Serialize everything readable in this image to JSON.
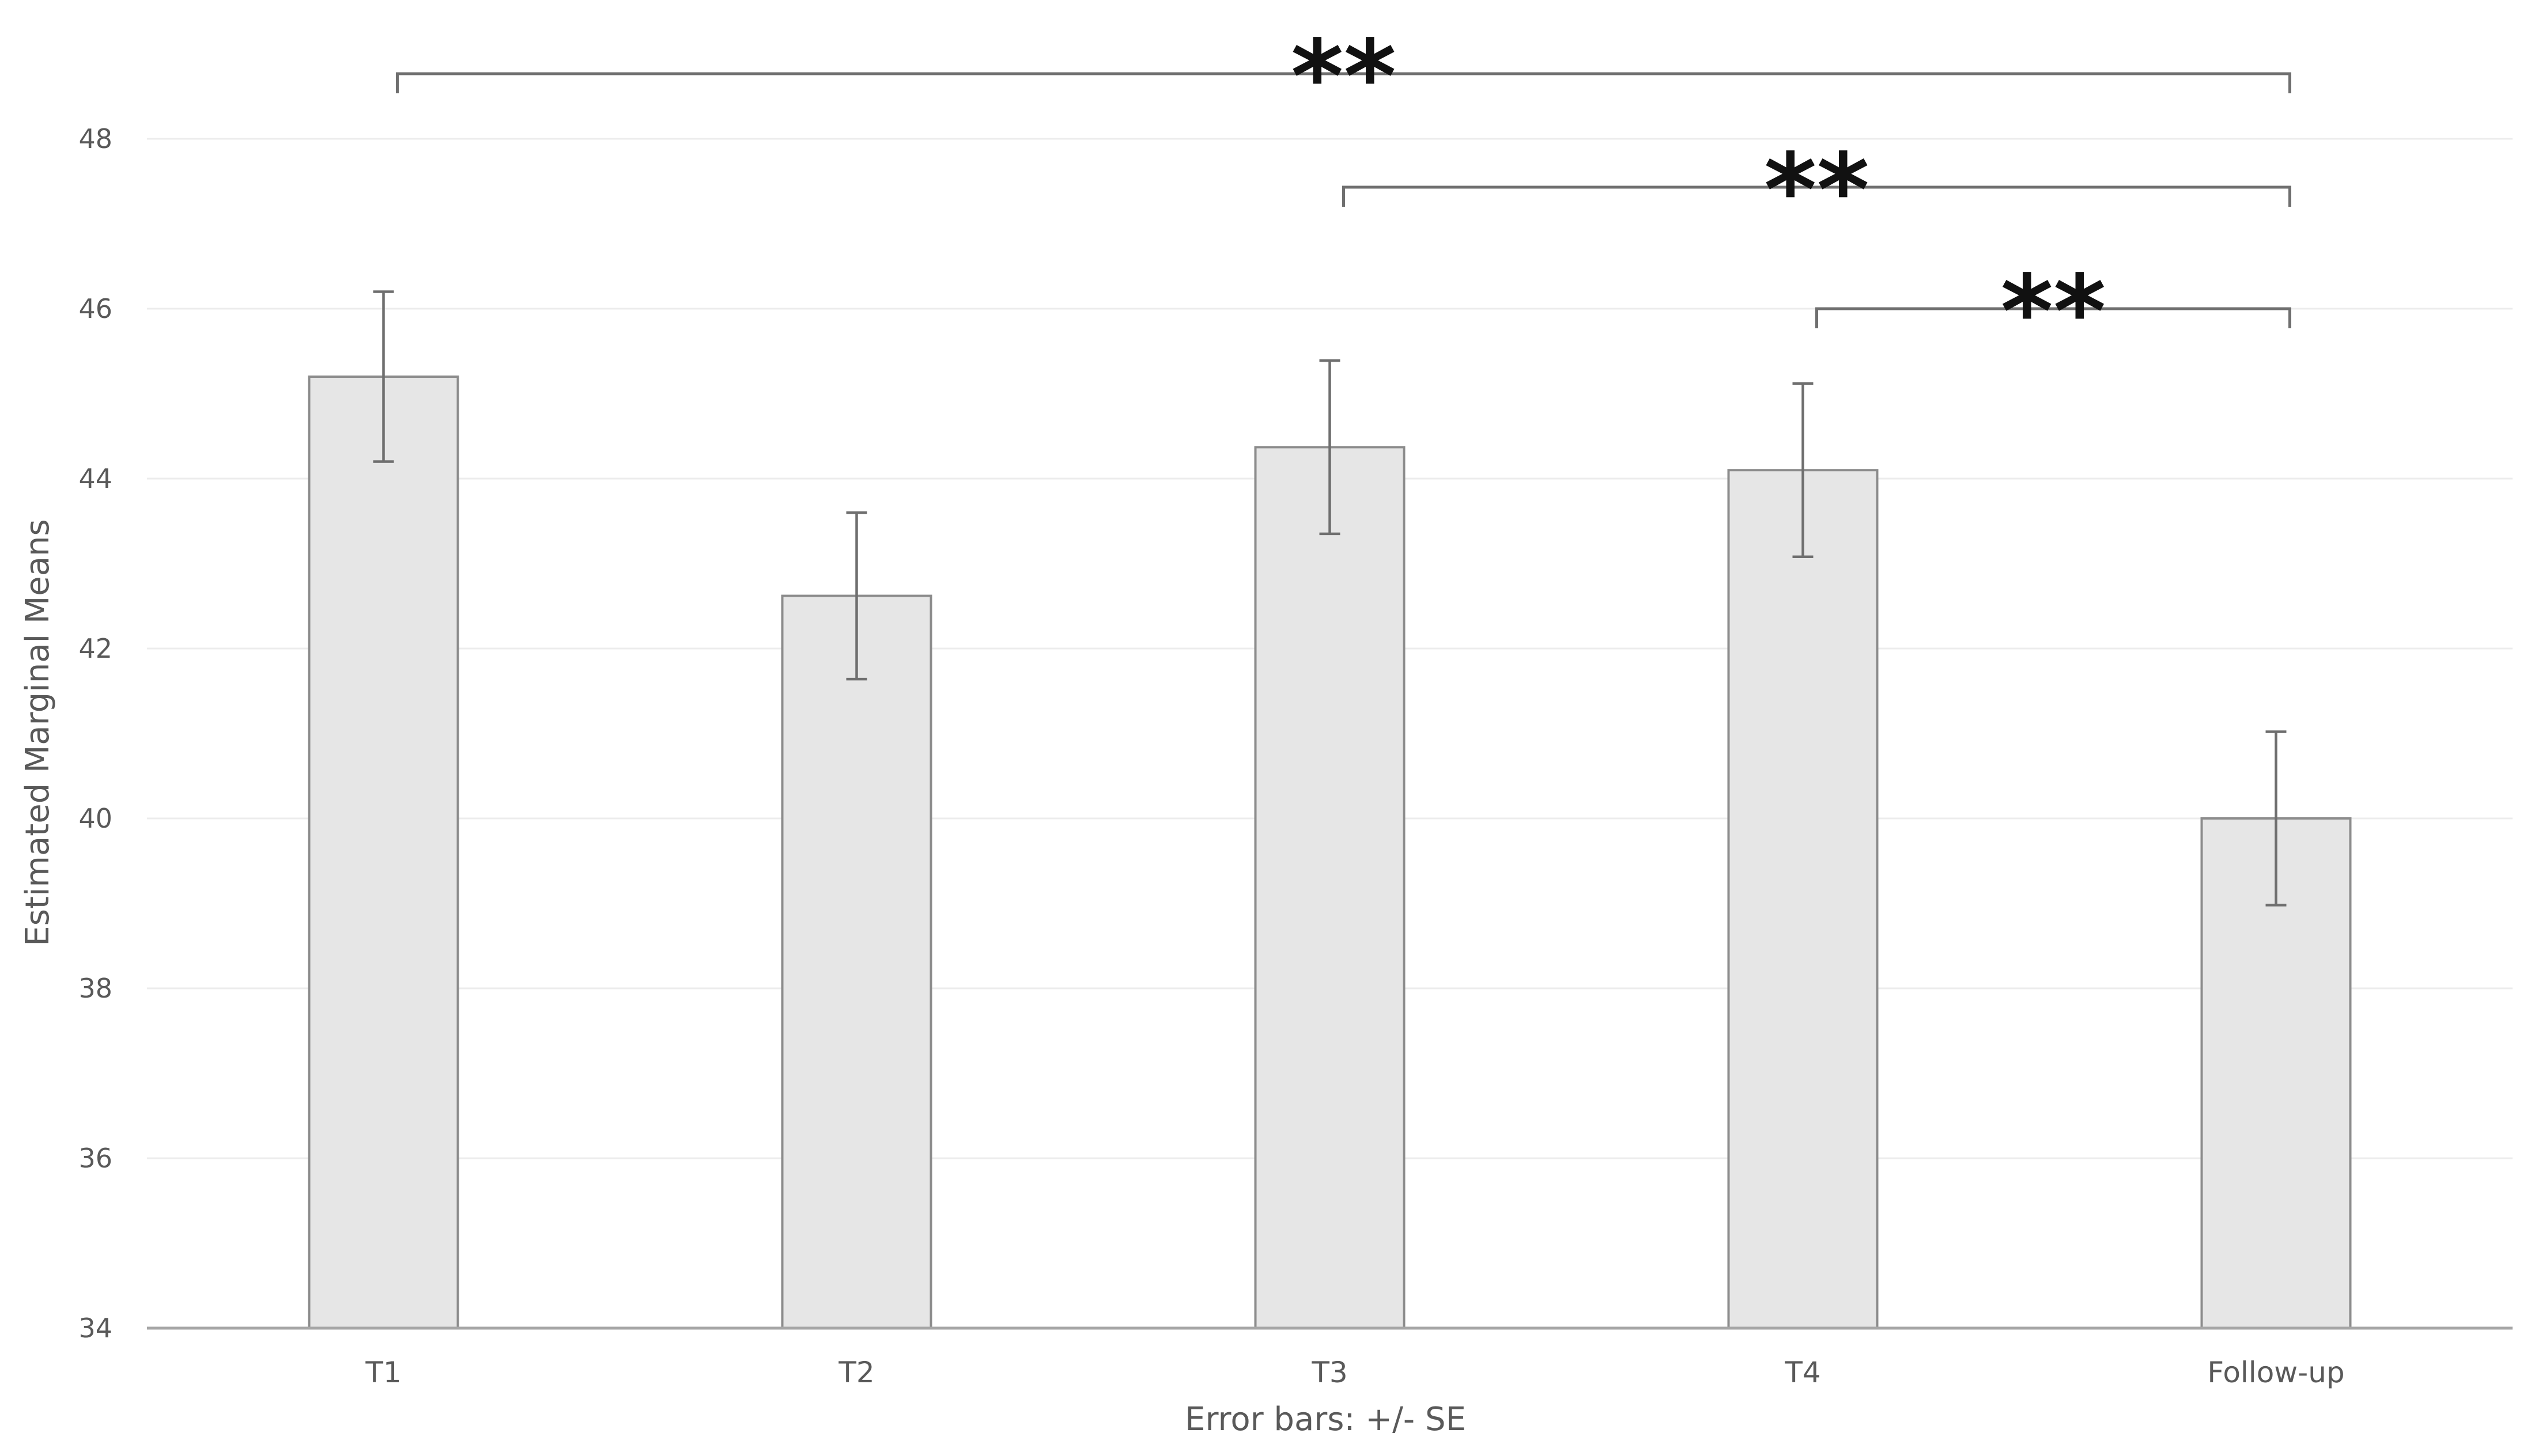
{
  "chart_data": {
    "type": "bar",
    "title": "",
    "categories": [
      "T1",
      "T2",
      "T3",
      "T4",
      "Follow-up"
    ],
    "values": [
      45.2,
      42.62,
      44.37,
      44.1,
      40.0
    ],
    "errors": [
      1.0,
      0.98,
      1.02,
      1.02,
      1.02
    ],
    "ylabel": "Estimated Marginal Means",
    "xlabel": "Error bars: +/- SE",
    "ylim": [
      34,
      48
    ],
    "yticks": [
      34,
      36,
      38,
      40,
      42,
      44,
      46,
      48
    ],
    "grid": true,
    "bar_color": "#e6e6e6",
    "significance": [
      {
        "from": "T1",
        "to": "Follow-up",
        "label": "**"
      },
      {
        "from": "T3",
        "to": "Follow-up",
        "label": "**"
      },
      {
        "from": "T4",
        "to": "Follow-up",
        "label": "**"
      }
    ]
  }
}
